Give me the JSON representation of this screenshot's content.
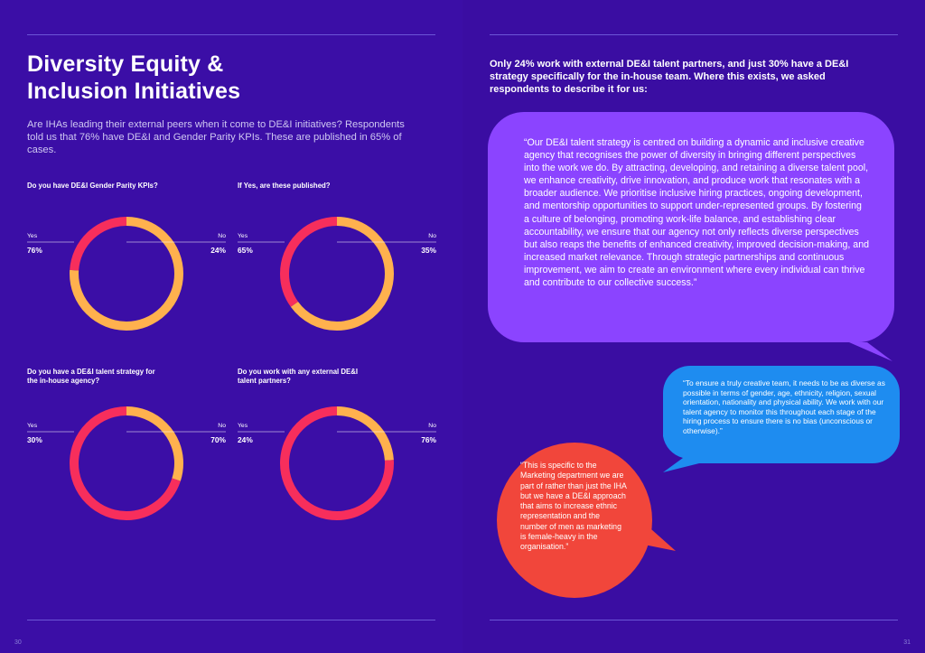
{
  "left": {
    "title_line1": "Diversity Equity &",
    "title_line2": "Inclusion Initiatives",
    "intro": "Are IHAs leading their external peers when it come to DE&I initiatives? Respondents told us that 76% have DE&I and Gender Parity KPIs. These are published in 65% of cases.",
    "page_number": "30"
  },
  "chart_data": [
    {
      "type": "pie",
      "title": "Do you have DE&I Gender Parity KPIs?",
      "categories": [
        "Yes",
        "No"
      ],
      "values": [
        76,
        24
      ],
      "value_labels": [
        "76%",
        "24%"
      ],
      "colors": [
        "#ffb14e",
        "#f72e5c"
      ]
    },
    {
      "type": "pie",
      "title": "If Yes, are these published?",
      "categories": [
        "Yes",
        "No"
      ],
      "values": [
        65,
        35
      ],
      "value_labels": [
        "65%",
        "35%"
      ],
      "colors": [
        "#ffb14e",
        "#f72e5c"
      ]
    },
    {
      "type": "pie",
      "title": "Do you have a DE&I talent strategy for the in-house agency?",
      "categories": [
        "Yes",
        "No"
      ],
      "values": [
        30,
        70
      ],
      "value_labels": [
        "30%",
        "70%"
      ],
      "colors": [
        "#ffb14e",
        "#f72e5c"
      ]
    },
    {
      "type": "pie",
      "title": "Do you work with any external DE&I talent partners?",
      "categories": [
        "Yes",
        "No"
      ],
      "values": [
        24,
        76
      ],
      "value_labels": [
        "24%",
        "76%"
      ],
      "colors": [
        "#ffb14e",
        "#f72e5c"
      ]
    }
  ],
  "right": {
    "intro": "Only 24% work with external DE&I talent partners, and just 30% have a DE&I strategy specifically for the in-house team. Where this exists, we asked respondents to describe it for us:",
    "quote1": "“Our DE&I talent strategy is centred on building a dynamic and inclusive creative agency that recognises the power of diversity in bringing different perspectives into the work we do. By attracting, developing, and retaining a diverse talent pool, we enhance creativity, drive innovation, and produce work that resonates with a broader audience. We prioritise inclusive hiring practices, ongoing development, and mentorship opportunities to support under-represented groups. By fostering a culture of belonging, promoting work-life balance, and establishing clear accountability, we ensure that our agency not only reflects diverse perspectives but also reaps the benefits of enhanced creativity, improved decision-making, and increased market relevance. Through strategic partnerships and continuous improvement, we aim to create an environment where every individual can thrive and contribute to our collective success.”",
    "quote2": "“To ensure a truly creative team, it needs to be as diverse as possible in terms of gender, age, ethnicity, religion, sexual orientation, nationality and physical ability. We work with our talent agency to monitor this throughout each stage of the hiring process to ensure there is no bias (unconscious or otherwise).”",
    "quote3": "“This is specific to the Marketing department we are part of rather than just the IHA but we have a DE&I approach that aims to increase ethnic representation and the number of men as marketing is female-heavy in the organisation.”",
    "page_number": "31",
    "colors": {
      "quote1": "#8b44ff",
      "quote2": "#1e8cf0",
      "quote3": "#f1463b"
    }
  }
}
